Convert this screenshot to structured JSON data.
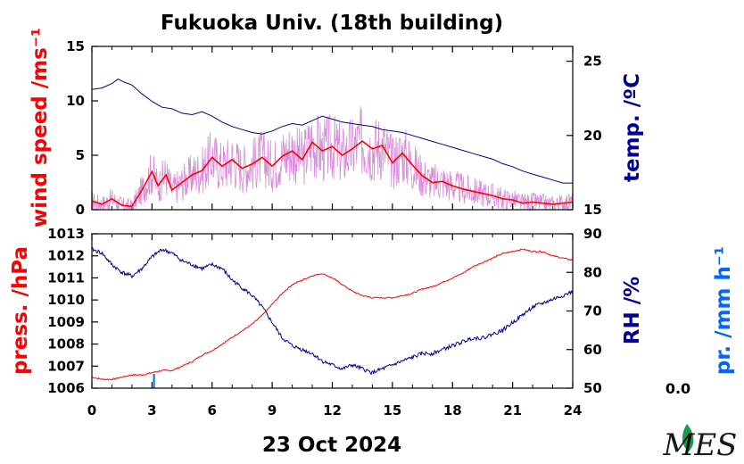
{
  "title": "Fukuoka Univ. (18th building)",
  "date_label": "23 Oct 2024",
  "rain_value": "0.0",
  "logo_text": "MES",
  "colors": {
    "wind": "#ff0000",
    "wind_raw": "#cc66cc",
    "temp": "#000099",
    "press": "#ff0000",
    "rh": "#000099",
    "rain": "#0066ff",
    "logo_leaf": "#1a9a4a"
  },
  "x_axis": {
    "ticks": [
      0,
      3,
      6,
      9,
      12,
      15,
      18,
      21,
      24
    ],
    "range": [
      0,
      24
    ]
  },
  "chart_data": [
    {
      "type": "line",
      "panel": "top",
      "left_axis": {
        "label": "wind speed /ms⁻¹",
        "range": [
          0,
          15
        ],
        "ticks": [
          0,
          5,
          10,
          15
        ]
      },
      "right_axis": {
        "label": "temp. /ºC",
        "range": [
          15,
          26
        ],
        "ticks": [
          15,
          20,
          25
        ]
      },
      "series": [
        {
          "axis": "left",
          "x": [
            0,
            0.5,
            1,
            1.5,
            2,
            2.5,
            3,
            3.3,
            3.7,
            4,
            4.5,
            5,
            5.5,
            6,
            6.5,
            7,
            7.5,
            8,
            8.5,
            9,
            9.5,
            10,
            10.5,
            11,
            11.5,
            12,
            12.5,
            13,
            13.5,
            14,
            14.5,
            15,
            15.5,
            16,
            16.5,
            17,
            17.5,
            18,
            18.5,
            19,
            19.5,
            20,
            20.5,
            21,
            21.5,
            22,
            22.5,
            23,
            23.5,
            24
          ],
          "values": [
            0.8,
            0.5,
            1.0,
            0.4,
            0.3,
            1.8,
            3.5,
            2.2,
            3.2,
            1.8,
            2.5,
            3.2,
            3.6,
            4.8,
            4.0,
            4.6,
            3.8,
            4.2,
            4.8,
            4.0,
            4.9,
            5.4,
            4.6,
            6.2,
            5.4,
            5.8,
            5.0,
            5.6,
            6.3,
            5.6,
            5.9,
            4.3,
            5.2,
            4.1,
            3.1,
            2.5,
            2.6,
            2.2,
            1.9,
            1.7,
            1.5,
            1.3,
            1.0,
            0.9,
            0.6,
            0.7,
            0.6,
            0.5,
            0.6,
            0.7
          ]
        },
        {
          "axis": "right",
          "x": [
            0,
            0.5,
            1,
            1.3,
            1.6,
            2,
            2.5,
            3,
            3.5,
            4,
            4.5,
            5,
            5.5,
            6,
            6.5,
            7,
            7.5,
            8,
            8.5,
            9,
            9.5,
            10,
            10.5,
            11,
            11.5,
            12,
            12.5,
            13,
            13.5,
            14,
            14.5,
            15,
            15.5,
            16,
            16.5,
            17,
            17.5,
            18,
            18.5,
            19,
            19.5,
            20,
            20.5,
            21,
            21.5,
            22,
            22.5,
            23,
            23.5,
            24
          ],
          "values": [
            23.1,
            23.2,
            23.5,
            23.8,
            23.6,
            23.4,
            22.8,
            22.3,
            21.9,
            21.8,
            21.5,
            21.4,
            21.6,
            21.3,
            20.9,
            20.6,
            20.4,
            20.2,
            20.1,
            20.3,
            20.6,
            20.8,
            20.7,
            21.0,
            21.3,
            21.1,
            20.9,
            20.8,
            20.7,
            20.6,
            20.4,
            20.3,
            20.2,
            20.0,
            19.8,
            19.6,
            19.4,
            19.2,
            19.0,
            18.8,
            18.6,
            18.4,
            18.1,
            17.9,
            17.6,
            17.4,
            17.2,
            17.0,
            16.8,
            16.8
          ]
        }
      ]
    },
    {
      "type": "line",
      "panel": "bottom",
      "left_axis": {
        "label": "press. /hPa",
        "range": [
          1006,
          1013
        ],
        "ticks": [
          1006,
          1007,
          1008,
          1009,
          1010,
          1011,
          1012,
          1013
        ]
      },
      "right_axis": {
        "label": "RH /%",
        "range": [
          50,
          90
        ],
        "ticks": [
          50,
          60,
          70,
          80,
          90
        ]
      },
      "series": [
        {
          "axis": "left",
          "x": [
            0,
            0.5,
            1,
            1.5,
            2,
            2.5,
            3,
            3.5,
            4,
            4.5,
            5,
            5.5,
            6,
            6.5,
            7,
            7.5,
            8,
            8.5,
            9,
            9.5,
            10,
            10.5,
            11,
            11.5,
            12,
            12.5,
            13,
            13.5,
            14,
            14.5,
            15,
            15.5,
            16,
            16.5,
            17,
            17.5,
            18,
            18.5,
            19,
            19.5,
            20,
            20.5,
            21,
            21.5,
            22,
            22.5,
            23,
            23.5,
            24
          ],
          "values": [
            1006.5,
            1006.4,
            1006.4,
            1006.5,
            1006.6,
            1006.6,
            1006.7,
            1006.8,
            1006.8,
            1007.0,
            1007.2,
            1007.5,
            1007.7,
            1008.0,
            1008.3,
            1008.6,
            1008.9,
            1009.3,
            1009.8,
            1010.3,
            1010.7,
            1010.9,
            1011.1,
            1011.2,
            1011.0,
            1010.7,
            1010.4,
            1010.2,
            1010.1,
            1010.1,
            1010.1,
            1010.2,
            1010.3,
            1010.5,
            1010.6,
            1010.8,
            1011.0,
            1011.2,
            1011.5,
            1011.7,
            1011.9,
            1012.1,
            1012.2,
            1012.3,
            1012.2,
            1012.2,
            1012.0,
            1011.9,
            1011.8
          ]
        },
        {
          "axis": "right",
          "x": [
            0,
            0.5,
            1,
            1.5,
            2,
            2.5,
            3,
            3.5,
            4,
            4.5,
            5,
            5.5,
            6,
            6.5,
            7,
            7.5,
            8,
            8.5,
            9,
            9.5,
            10,
            10.5,
            11,
            11.5,
            12,
            12.5,
            13,
            13.5,
            14,
            14.5,
            15,
            15.5,
            16,
            16.5,
            17,
            17.5,
            18,
            18.5,
            19,
            19.5,
            20,
            20.5,
            21,
            21.5,
            22,
            22.5,
            23,
            23.5,
            24
          ],
          "values": [
            86,
            85,
            82,
            80,
            79,
            81,
            84,
            86,
            85,
            83,
            82,
            81,
            82,
            81,
            78,
            76,
            74,
            71,
            67,
            63,
            61,
            60,
            59,
            57,
            56,
            55,
            56,
            55,
            54,
            55,
            56,
            57,
            58,
            59,
            59,
            60,
            61,
            62,
            63,
            63,
            64,
            65,
            67,
            69,
            71,
            72,
            73,
            74,
            75
          ]
        },
        {
          "axis": "rain",
          "label": "pr. /mm h⁻¹",
          "x": [
            3.1
          ],
          "values": [
            0.1
          ]
        }
      ]
    }
  ]
}
